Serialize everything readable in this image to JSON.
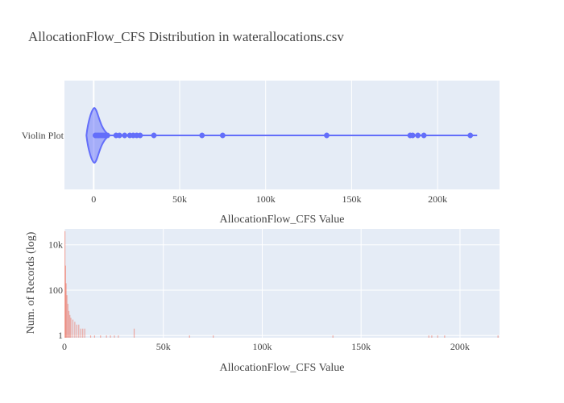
{
  "chart_data": [
    {
      "type": "violin",
      "title": "AllocationFlow_CFS Distribution in waterallocations.csv",
      "category_label": "Violin Plot",
      "xlabel": "AllocationFlow_CFS Value",
      "xlim": [
        -17000,
        236000
      ],
      "x_ticks": [
        0,
        50000,
        100000,
        150000,
        200000
      ],
      "x_tick_labels": [
        "0",
        "50k",
        "100k",
        "150k",
        "200k"
      ],
      "grid": true,
      "range": [
        -200,
        223000
      ],
      "outliers": [
        1000,
        2000,
        3000,
        4000,
        5000,
        6000,
        7000,
        8000,
        13000,
        15000,
        18000,
        21000,
        23000,
        25000,
        27000,
        35000,
        63000,
        75000,
        135500,
        184000,
        185500,
        188500,
        192000,
        219000
      ],
      "color": "#636efa",
      "fill_color": "#636efa"
    },
    {
      "type": "histogram",
      "xlabel": "AllocationFlow_CFS Value",
      "ylabel": "Num. of Records (log)",
      "y_scale": "log",
      "xlim": [
        0,
        220000
      ],
      "ylim_log10": [
        -0.1,
        4.7
      ],
      "x_ticks": [
        0,
        50000,
        100000,
        150000,
        200000
      ],
      "x_tick_labels": [
        "0",
        "50k",
        "100k",
        "150k",
        "200k"
      ],
      "y_ticks": [
        1,
        100,
        10000
      ],
      "y_tick_labels": [
        "1",
        "100",
        "10k"
      ],
      "grid": true,
      "color": "#ef553b",
      "bins": [
        {
          "x": 0,
          "y": 40000
        },
        {
          "x": 300,
          "y": 1200
        },
        {
          "x": 600,
          "y": 200
        },
        {
          "x": 1000,
          "y": 60
        },
        {
          "x": 1500,
          "y": 25
        },
        {
          "x": 2000,
          "y": 12
        },
        {
          "x": 2500,
          "y": 8
        },
        {
          "x": 3000,
          "y": 6
        },
        {
          "x": 4000,
          "y": 5
        },
        {
          "x": 5000,
          "y": 4
        },
        {
          "x": 6000,
          "y": 3
        },
        {
          "x": 7000,
          "y": 3
        },
        {
          "x": 8000,
          "y": 2
        },
        {
          "x": 9000,
          "y": 2
        },
        {
          "x": 10000,
          "y": 2
        },
        {
          "x": 13000,
          "y": 1
        },
        {
          "x": 15000,
          "y": 1
        },
        {
          "x": 18000,
          "y": 1
        },
        {
          "x": 21000,
          "y": 1
        },
        {
          "x": 23000,
          "y": 1
        },
        {
          "x": 25000,
          "y": 1
        },
        {
          "x": 27000,
          "y": 1
        },
        {
          "x": 35000,
          "y": 2
        },
        {
          "x": 63000,
          "y": 1
        },
        {
          "x": 75000,
          "y": 1
        },
        {
          "x": 135500,
          "y": 1
        },
        {
          "x": 184000,
          "y": 1
        },
        {
          "x": 185500,
          "y": 1
        },
        {
          "x": 188500,
          "y": 1
        },
        {
          "x": 192000,
          "y": 1
        },
        {
          "x": 219000,
          "y": 1
        }
      ]
    }
  ]
}
